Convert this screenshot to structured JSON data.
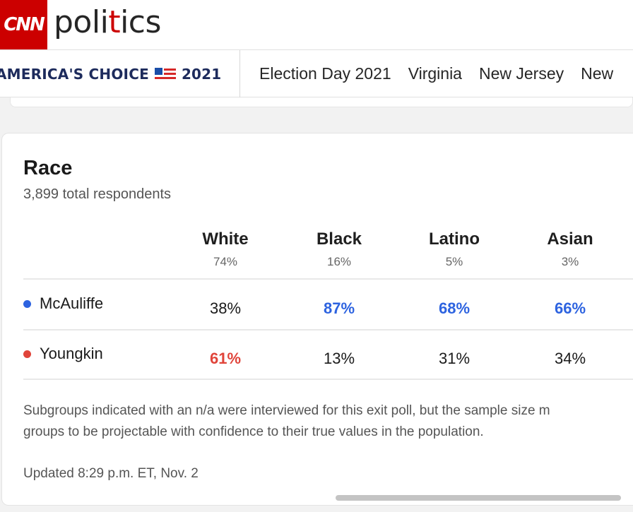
{
  "header": {
    "logo_text": "CNN",
    "section_pre": "poli",
    "section_accent": "t",
    "section_post": "ics"
  },
  "nav": {
    "brand_pre": "AMERICA'S CHOICE",
    "brand_year": "2021",
    "flag_icon": "us-flag-icon",
    "links": [
      "Election Day 2021",
      "Virginia",
      "New Jersey",
      "New"
    ]
  },
  "card": {
    "title": "Race",
    "subtitle": "3,899 total respondents",
    "columns": [
      {
        "name": "White",
        "share": "74%"
      },
      {
        "name": "Black",
        "share": "16%"
      },
      {
        "name": "Latino",
        "share": "5%"
      },
      {
        "name": "Asian",
        "share": "3%"
      }
    ],
    "rows": [
      {
        "candidate": "McAuliffe",
        "color": "#2d63e0",
        "values": [
          "38%",
          "87%",
          "68%",
          "66%"
        ]
      },
      {
        "candidate": "Youngkin",
        "color": "#e0443a",
        "values": [
          "61%",
          "13%",
          "31%",
          "34%"
        ]
      }
    ],
    "note_line1": "Subgroups indicated with an n/a were interviewed for this exit poll, but the sample size m",
    "note_line2": "groups to be projectable with confidence to their true values in the population.",
    "updated": "Updated 8:29 p.m. ET, Nov. 2"
  }
}
